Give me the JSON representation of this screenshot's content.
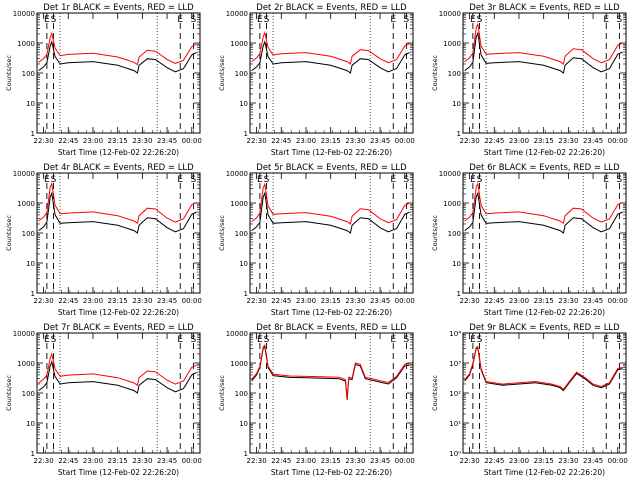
{
  "chart_data": [
    {
      "type": "line",
      "title": "Det 1r BLACK = Events, RED = LLD",
      "xlabel": "Start Time (12-Feb-02 22:26:20)",
      "ylabel": "Counts/sec",
      "yscale": "log",
      "ylim": [
        1,
        10000
      ],
      "xlim": [
        "22:26",
        "00:05"
      ],
      "x_ticks": [
        "22:30",
        "22:45",
        "23:00",
        "23:15",
        "23:30",
        "23:45",
        "00:00"
      ],
      "y_ticks": [
        "1",
        "10",
        "100",
        "1000",
        "10000"
      ],
      "markers": [
        {
          "label": "E",
          "time": "22:32"
        },
        {
          "label": "S",
          "time": "22:36"
        },
        {
          "label": "E",
          "time": "23:53"
        },
        {
          "label": "S",
          "time": "00:01"
        }
      ],
      "shape": "A",
      "series": [
        {
          "color": "#000000",
          "scale": 1.0
        },
        {
          "color": "#ff0000",
          "scale": 1.9
        }
      ]
    },
    {
      "type": "line",
      "title": "Det 2r BLACK = Events, RED = LLD",
      "xlabel": "Start Time (12-Feb-02 22:26:20)",
      "ylabel": "Counts/sec",
      "yscale": "log",
      "ylim": [
        1,
        10000
      ],
      "xlim": [
        "22:26",
        "00:05"
      ],
      "x_ticks": [
        "22:30",
        "22:45",
        "23:00",
        "23:15",
        "23:30",
        "23:45",
        "00:00"
      ],
      "y_ticks": [
        "1",
        "10",
        "100",
        "1000",
        "10000"
      ],
      "markers": [
        {
          "label": "E",
          "time": "22:32"
        },
        {
          "label": "S",
          "time": "22:36"
        },
        {
          "label": "E",
          "time": "23:53"
        },
        {
          "label": "S",
          "time": "00:01"
        }
      ],
      "shape": "A",
      "series": [
        {
          "color": "#000000",
          "scale": 1.0
        },
        {
          "color": "#ff0000",
          "scale": 2.0
        }
      ]
    },
    {
      "type": "line",
      "title": "Det 3r BLACK = Events, RED = LLD",
      "xlabel": "Start Time (12-Feb-02 22:26:20)",
      "ylabel": "Counts/sec",
      "yscale": "log",
      "ylim": [
        1,
        10000
      ],
      "xlim": [
        "22:26",
        "00:05"
      ],
      "x_ticks": [
        "22:30",
        "22:45",
        "23:00",
        "23:15",
        "23:30",
        "23:45",
        "00:00"
      ],
      "y_ticks": [
        "1",
        "10",
        "100",
        "1000",
        "10000"
      ],
      "markers": [
        {
          "label": "E",
          "time": "22:32"
        },
        {
          "label": "S",
          "time": "22:36"
        },
        {
          "label": "E",
          "time": "23:53"
        },
        {
          "label": "S",
          "time": "00:01"
        }
      ],
      "shape": "B",
      "series": [
        {
          "color": "#000000",
          "scale": 1.0
        },
        {
          "color": "#ff0000",
          "scale": 2.0
        }
      ]
    },
    {
      "type": "line",
      "title": "Det 4r BLACK = Events, RED = LLD",
      "xlabel": "Start Time (12-Feb-02 22:26:20)",
      "ylabel": "Counts/sec",
      "yscale": "log",
      "ylim": [
        1,
        10000
      ],
      "xlim": [
        "22:26",
        "00:05"
      ],
      "x_ticks": [
        "22:30",
        "22:45",
        "23:00",
        "23:15",
        "23:30",
        "23:45",
        "00:00"
      ],
      "y_ticks": [
        "1",
        "10",
        "100",
        "1000",
        "10000"
      ],
      "markers": [
        {
          "label": "E",
          "time": "22:32"
        },
        {
          "label": "S",
          "time": "22:36"
        },
        {
          "label": "E",
          "time": "23:53"
        },
        {
          "label": "S",
          "time": "00:01"
        }
      ],
      "shape": "B",
      "series": [
        {
          "color": "#000000",
          "scale": 1.0
        },
        {
          "color": "#ff0000",
          "scale": 2.1
        }
      ]
    },
    {
      "type": "line",
      "title": "Det 5r BLACK = Events, RED = LLD",
      "xlabel": "Start Time (12-Feb-02 22:26:20)",
      "ylabel": "Counts/sec",
      "yscale": "log",
      "ylim": [
        1,
        10000
      ],
      "xlim": [
        "22:26",
        "00:05"
      ],
      "x_ticks": [
        "22:30",
        "22:45",
        "23:00",
        "23:15",
        "23:30",
        "23:45",
        "00:00"
      ],
      "y_ticks": [
        "1",
        "10",
        "100",
        "1000",
        "10000"
      ],
      "markers": [
        {
          "label": "E",
          "time": "22:32"
        },
        {
          "label": "S",
          "time": "22:36"
        },
        {
          "label": "E",
          "time": "23:53"
        },
        {
          "label": "S",
          "time": "00:01"
        }
      ],
      "shape": "B",
      "series": [
        {
          "color": "#000000",
          "scale": 1.0
        },
        {
          "color": "#ff0000",
          "scale": 2.0
        }
      ]
    },
    {
      "type": "line",
      "title": "Det 6r BLACK = Events, RED = LLD",
      "xlabel": "Start Time (12-Feb-02 22:26:20)",
      "ylabel": "Counts/sec",
      "yscale": "log",
      "ylim": [
        1,
        10000
      ],
      "xlim": [
        "22:26",
        "00:05"
      ],
      "x_ticks": [
        "22:30",
        "22:45",
        "23:00",
        "23:15",
        "23:30",
        "23:45",
        "00:00"
      ],
      "y_ticks": [
        "1",
        "10",
        "100",
        "1000",
        "10000"
      ],
      "markers": [
        {
          "label": "E",
          "time": "22:32"
        },
        {
          "label": "S",
          "time": "22:36"
        },
        {
          "label": "E",
          "time": "23:53"
        },
        {
          "label": "S",
          "time": "00:01"
        }
      ],
      "shape": "B",
      "series": [
        {
          "color": "#000000",
          "scale": 1.0
        },
        {
          "color": "#ff0000",
          "scale": 2.1
        }
      ]
    },
    {
      "type": "line",
      "title": "Det 7r BLACK = Events, RED = LLD",
      "xlabel": "Start Time (12-Feb-02 22:26:20)",
      "ylabel": "Counts/sec",
      "yscale": "log",
      "ylim": [
        1,
        10000
      ],
      "xlim": [
        "22:26",
        "00:05"
      ],
      "x_ticks": [
        "22:30",
        "22:45",
        "23:00",
        "23:15",
        "23:30",
        "23:45",
        "00:00"
      ],
      "y_ticks": [
        "1",
        "10",
        "100",
        "1000",
        "10000"
      ],
      "markers": [
        {
          "label": "E",
          "time": "22:32"
        },
        {
          "label": "S",
          "time": "22:36"
        },
        {
          "label": "E",
          "time": "23:53"
        },
        {
          "label": "S",
          "time": "00:01"
        }
      ],
      "shape": "A",
      "series": [
        {
          "color": "#000000",
          "scale": 1.0
        },
        {
          "color": "#ff0000",
          "scale": 1.8
        }
      ]
    },
    {
      "type": "line",
      "title": "Det 8r BLACK = Events, RED = LLD",
      "xlabel": "Start Time (12-Feb-02 22:26:20)",
      "ylabel": "Counts/sec",
      "yscale": "log",
      "ylim": [
        1,
        10000
      ],
      "xlim": [
        "22:26",
        "00:05"
      ],
      "x_ticks": [
        "22:30",
        "22:45",
        "23:00",
        "23:15",
        "23:30",
        "23:45",
        "00:00"
      ],
      "y_ticks": [
        "1",
        "10",
        "100",
        "1000",
        "10000"
      ],
      "markers": [
        {
          "label": "E",
          "time": "22:32"
        },
        {
          "label": "S",
          "time": "22:36"
        },
        {
          "label": "E",
          "time": "23:53"
        },
        {
          "label": "S",
          "time": "00:01"
        }
      ],
      "shape": "C",
      "series": [
        {
          "color": "#000000",
          "scale": 1.0
        },
        {
          "color": "#ff0000",
          "scale": 1.12
        }
      ]
    },
    {
      "type": "line",
      "title": "Det 9r BLACK = Events, RED = LLD",
      "xlabel": "Start Time (12-Feb-02 22:26:20)",
      "ylabel": "Counts/sec",
      "yscale": "log",
      "ylim": [
        1,
        10000
      ],
      "xlim": [
        "22:26",
        "00:05"
      ],
      "x_ticks": [
        "22:30",
        "22:45",
        "23:00",
        "23:15",
        "23:30",
        "23:45",
        "00:00"
      ],
      "y_ticks": [
        "10⁰",
        "10¹",
        "10²",
        "10³",
        "10⁴"
      ],
      "markers": [
        {
          "label": "E",
          "time": "22:32"
        },
        {
          "label": "S",
          "time": "22:36"
        },
        {
          "label": "E",
          "time": "23:53"
        },
        {
          "label": "S",
          "time": "00:01"
        }
      ],
      "shape": "D",
      "series": [
        {
          "color": "#000000",
          "scale": 1.0
        },
        {
          "color": "#ff0000",
          "scale": 1.1
        }
      ]
    }
  ],
  "shapes": {
    "A": [
      [
        "22:27",
        120
      ],
      [
        "22:30",
        160
      ],
      [
        "22:32",
        220
      ],
      [
        "22:34",
        800
      ],
      [
        "22:35",
        1100
      ],
      [
        "22:37",
        350
      ],
      [
        "22:40",
        200
      ],
      [
        "22:45",
        220
      ],
      [
        "23:00",
        240
      ],
      [
        "23:15",
        180
      ],
      [
        "23:25",
        120
      ],
      [
        "23:27",
        100
      ],
      [
        "23:28",
        180
      ],
      [
        "23:33",
        300
      ],
      [
        "23:38",
        280
      ],
      [
        "23:45",
        150
      ],
      [
        "23:50",
        110
      ],
      [
        "23:55",
        140
      ],
      [
        "00:00",
        400
      ],
      [
        "00:03",
        480
      ]
    ],
    "B": [
      [
        "22:27",
        120
      ],
      [
        "22:30",
        160
      ],
      [
        "22:32",
        230
      ],
      [
        "22:34",
        1600
      ],
      [
        "22:35",
        2100
      ],
      [
        "22:37",
        400
      ],
      [
        "22:40",
        210
      ],
      [
        "22:45",
        220
      ],
      [
        "23:00",
        240
      ],
      [
        "23:15",
        180
      ],
      [
        "23:25",
        120
      ],
      [
        "23:27",
        100
      ],
      [
        "23:28",
        180
      ],
      [
        "23:33",
        320
      ],
      [
        "23:38",
        300
      ],
      [
        "23:45",
        150
      ],
      [
        "23:50",
        110
      ],
      [
        "23:55",
        140
      ],
      [
        "00:00",
        420
      ],
      [
        "00:03",
        500
      ]
    ],
    "C": [
      [
        "22:27",
        250
      ],
      [
        "22:30",
        400
      ],
      [
        "22:32",
        700
      ],
      [
        "22:34",
        3000
      ],
      [
        "22:35",
        3500
      ],
      [
        "22:37",
        700
      ],
      [
        "22:40",
        380
      ],
      [
        "22:50",
        330
      ],
      [
        "23:00",
        320
      ],
      [
        "23:10",
        310
      ],
      [
        "23:20",
        300
      ],
      [
        "23:24",
        250
      ],
      [
        "23:25",
        60
      ],
      [
        "23:26",
        300
      ],
      [
        "23:28",
        280
      ],
      [
        "23:30",
        900
      ],
      [
        "23:33",
        800
      ],
      [
        "23:36",
        300
      ],
      [
        "23:40",
        270
      ],
      [
        "23:45",
        230
      ],
      [
        "23:50",
        200
      ],
      [
        "23:55",
        320
      ],
      [
        "00:00",
        800
      ],
      [
        "00:03",
        850
      ]
    ],
    "D": [
      [
        "22:27",
        250
      ],
      [
        "22:30",
        400
      ],
      [
        "22:32",
        900
      ],
      [
        "22:34",
        3000
      ],
      [
        "22:35",
        3200
      ],
      [
        "22:37",
        600
      ],
      [
        "22:40",
        220
      ],
      [
        "22:50",
        180
      ],
      [
        "23:00",
        200
      ],
      [
        "23:10",
        220
      ],
      [
        "23:20",
        180
      ],
      [
        "23:25",
        150
      ],
      [
        "23:27",
        120
      ],
      [
        "23:30",
        200
      ],
      [
        "23:35",
        450
      ],
      [
        "23:40",
        300
      ],
      [
        "23:45",
        180
      ],
      [
        "23:50",
        150
      ],
      [
        "23:55",
        200
      ],
      [
        "00:00",
        600
      ],
      [
        "00:03",
        650
      ]
    ]
  }
}
